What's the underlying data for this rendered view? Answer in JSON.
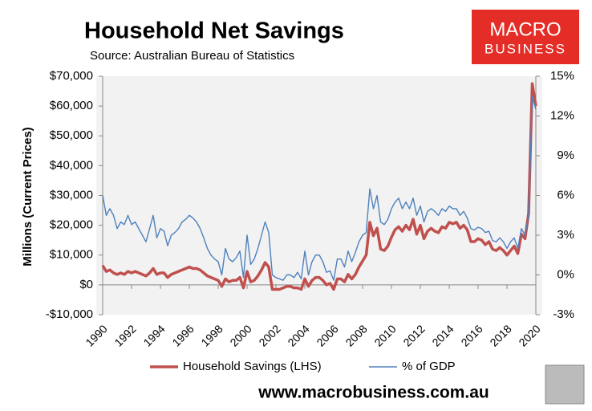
{
  "chart_data": {
    "type": "line",
    "title": "Household Net Savings",
    "subtitle": "Source: Australian Bureau of Statistics",
    "ylabel": "Millions (Current Prices)",
    "brand": [
      "MACRO",
      "BUSINESS"
    ],
    "footer": "www.macrobusiness.com.au",
    "x": [
      1990,
      1990.25,
      1990.5,
      1990.75,
      1991,
      1991.25,
      1991.5,
      1991.75,
      1992,
      1992.25,
      1992.5,
      1992.75,
      1993,
      1993.25,
      1993.5,
      1993.75,
      1994,
      1994.25,
      1994.5,
      1994.75,
      1995,
      1995.25,
      1995.5,
      1995.75,
      1996,
      1996.25,
      1996.5,
      1996.75,
      1997,
      1997.25,
      1997.5,
      1997.75,
      1998,
      1998.25,
      1998.5,
      1998.75,
      1999,
      1999.25,
      1999.5,
      1999.75,
      2000,
      2000.25,
      2000.5,
      2000.75,
      2001,
      2001.25,
      2001.5,
      2001.75,
      2002,
      2002.25,
      2002.5,
      2002.75,
      2003,
      2003.25,
      2003.5,
      2003.75,
      2004,
      2004.25,
      2004.5,
      2004.75,
      2005,
      2005.25,
      2005.5,
      2005.75,
      2006,
      2006.25,
      2006.5,
      2006.75,
      2007,
      2007.25,
      2007.5,
      2007.75,
      2008,
      2008.25,
      2008.5,
      2008.75,
      2009,
      2009.25,
      2009.5,
      2009.75,
      2010,
      2010.25,
      2010.5,
      2010.75,
      2011,
      2011.25,
      2011.5,
      2011.75,
      2012,
      2012.25,
      2012.5,
      2012.75,
      2013,
      2013.25,
      2013.5,
      2013.75,
      2014,
      2014.25,
      2014.5,
      2014.75,
      2015,
      2015.25,
      2015.5,
      2015.75,
      2016,
      2016.25,
      2016.5,
      2016.75,
      2017,
      2017.25,
      2017.5,
      2017.75,
      2018,
      2018.25,
      2018.5,
      2018.75,
      2019,
      2019.25,
      2019.5,
      2019.75,
      2020
    ],
    "series": [
      {
        "name": "Household Savings (LHS)",
        "color": "#c0504d",
        "axis": "y",
        "values": [
          6500,
          4500,
          5000,
          4000,
          3500,
          4000,
          3500,
          4500,
          4000,
          4500,
          4000,
          3500,
          3000,
          4000,
          5500,
          3500,
          4000,
          4000,
          2500,
          3500,
          4000,
          4500,
          5000,
          5500,
          6000,
          5500,
          5500,
          5000,
          4000,
          3000,
          2500,
          2000,
          1500,
          -500,
          2000,
          1000,
          1500,
          1500,
          2500,
          -1000,
          4500,
          1000,
          1500,
          3000,
          5000,
          7500,
          6000,
          -1500,
          -1500,
          -1500,
          -1000,
          -500,
          -500,
          -1000,
          -1000,
          -1500,
          2000,
          -500,
          1500,
          2500,
          2500,
          1500,
          0,
          500,
          -1500,
          2000,
          2000,
          1000,
          3500,
          2000,
          3500,
          6000,
          8000,
          10000,
          21000,
          16500,
          19000,
          12000,
          11500,
          13000,
          16000,
          18500,
          19500,
          18000,
          20000,
          18500,
          22000,
          17000,
          20000,
          15500,
          18000,
          19000,
          18000,
          17500,
          19500,
          19000,
          21000,
          20500,
          21000,
          19000,
          20000,
          18500,
          14500,
          14500,
          15500,
          15000,
          13500,
          14500,
          12000,
          11500,
          12500,
          11500,
          10000,
          11500,
          13000,
          10500,
          17000,
          15500,
          24000,
          67500,
          60000
        ]
      },
      {
        "name": "% of GDP",
        "color": "#4f81bd",
        "axis": "y2",
        "values": [
          6.0,
          4.5,
          5.0,
          4.5,
          3.5,
          4.0,
          3.8,
          4.5,
          3.8,
          4.0,
          3.5,
          3.0,
          2.5,
          3.5,
          4.5,
          2.8,
          3.5,
          3.3,
          2.2,
          3.0,
          3.2,
          3.5,
          4.0,
          4.2,
          4.5,
          4.3,
          4.0,
          3.5,
          2.8,
          2.0,
          1.5,
          1.2,
          1.0,
          0.0,
          2.0,
          1.2,
          1.0,
          1.3,
          1.8,
          -0.2,
          3.0,
          0.8,
          1.2,
          2.0,
          3.0,
          4.0,
          3.2,
          0.0,
          -0.2,
          -0.3,
          -0.4,
          0.0,
          0.0,
          -0.2,
          0.2,
          -0.3,
          1.8,
          0.0,
          1.0,
          1.5,
          1.5,
          1.0,
          0.2,
          0.3,
          -0.4,
          1.2,
          1.2,
          0.6,
          1.8,
          1.0,
          1.7,
          2.5,
          3.0,
          3.2,
          6.5,
          5.0,
          6.0,
          4.0,
          3.8,
          4.2,
          5.0,
          5.5,
          5.8,
          5.0,
          5.5,
          5.0,
          5.8,
          4.5,
          5.2,
          4.0,
          4.8,
          5.0,
          4.8,
          4.5,
          5.0,
          4.8,
          5.2,
          5.0,
          5.0,
          4.5,
          4.8,
          4.3,
          3.5,
          3.4,
          3.6,
          3.5,
          3.2,
          3.3,
          2.6,
          2.5,
          2.8,
          2.5,
          2.0,
          2.5,
          2.8,
          2.0,
          3.5,
          3.0,
          4.5,
          13.5,
          12.5
        ]
      }
    ],
    "xlim": [
      1990,
      2020
    ],
    "xticks": [
      1990,
      1992,
      1994,
      1996,
      1998,
      2000,
      2002,
      2004,
      2006,
      2008,
      2010,
      2012,
      2014,
      2016,
      2018,
      2020
    ],
    "ylim": [
      -10000,
      70000
    ],
    "yticks": [
      {
        "value": -10000,
        "label": "-$10,000"
      },
      {
        "value": 0,
        "label": "$0"
      },
      {
        "value": 10000,
        "label": "$10,000"
      },
      {
        "value": 20000,
        "label": "$20,000"
      },
      {
        "value": 30000,
        "label": "$30,000"
      },
      {
        "value": 40000,
        "label": "$40,000"
      },
      {
        "value": 50000,
        "label": "$50,000"
      },
      {
        "value": 60000,
        "label": "$60,000"
      },
      {
        "value": 70000,
        "label": "$70,000"
      }
    ],
    "y2lim": [
      -3,
      15
    ],
    "y2ticks": [
      {
        "value": -3,
        "label": "-3%"
      },
      {
        "value": 0,
        "label": "0%"
      },
      {
        "value": 3,
        "label": "3%"
      },
      {
        "value": 6,
        "label": "6%"
      },
      {
        "value": 9,
        "label": "9%"
      },
      {
        "value": 12,
        "label": "12%"
      },
      {
        "value": 15,
        "label": "15%"
      }
    ],
    "grid": false,
    "legend": "bottom"
  }
}
